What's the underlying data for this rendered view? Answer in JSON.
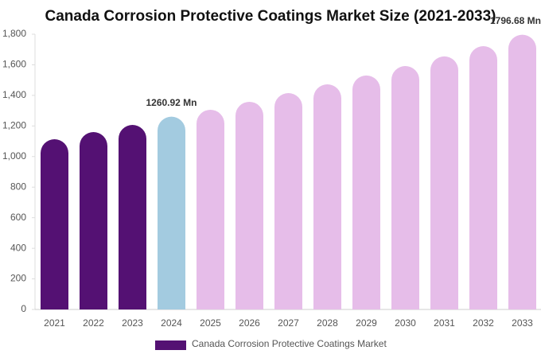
{
  "chart_data": {
    "type": "bar",
    "title": "Canada Corrosion Protective Coatings Market Size (2021-2033)",
    "categories": [
      "2021",
      "2022",
      "2023",
      "2024",
      "2025",
      "2026",
      "2027",
      "2028",
      "2029",
      "2030",
      "2031",
      "2032",
      "2033"
    ],
    "series": [
      {
        "name": "Canada Corrosion Protective Coatings Market",
        "color": "#541173",
        "values": [
          1113,
          1160,
          1207,
          1260.92,
          1306,
          1358,
          1415,
          1472,
          1530,
          1592,
          1655,
          1722,
          1796.68
        ],
        "value_labels": [
          null,
          null,
          null,
          "1260.92 Mn",
          null,
          null,
          null,
          null,
          null,
          null,
          null,
          null,
          "1796.68 Mn"
        ],
        "bar_colors": [
          "#541173",
          "#541173",
          "#541173",
          "#a3cbe0",
          "#e6bde9",
          "#e6bde9",
          "#e6bde9",
          "#e6bde9",
          "#e6bde9",
          "#e6bde9",
          "#e6bde9",
          "#e6bde9",
          "#e6bde9"
        ]
      }
    ],
    "ylim": [
      0,
      1800
    ],
    "yticks": [
      0,
      200,
      400,
      600,
      800,
      {
        "value": 1000,
        "label": "1,000"
      },
      {
        "value": 1200,
        "label": "1,200"
      },
      {
        "value": 1400,
        "label": "1,400"
      },
      {
        "value": 1600,
        "label": "1,600"
      },
      {
        "value": 1800,
        "label": "1,800"
      }
    ],
    "grid": false,
    "legend": "bottom"
  }
}
